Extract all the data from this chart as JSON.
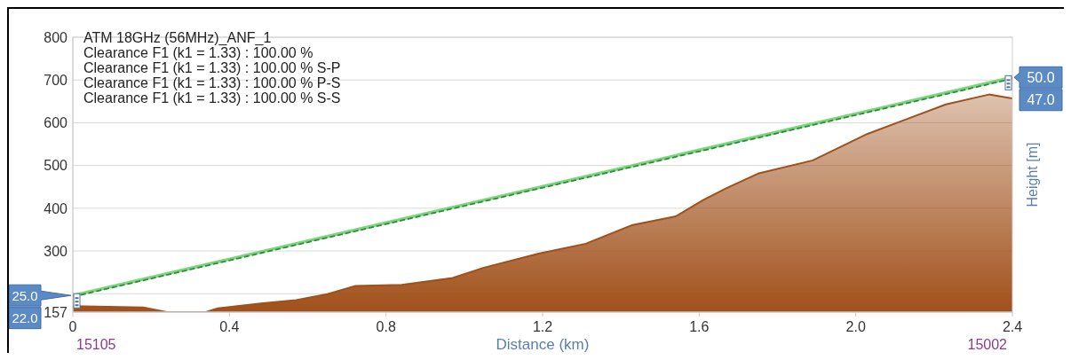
{
  "chart_data": {
    "type": "area",
    "title": "ATM 18GHz (56MHz)_ANF_1",
    "xlabel": "Distance (km)",
    "ylabel": "Height [m]",
    "series": [
      {
        "color": "#a0501a",
        "x": [
          0,
          0.18,
          0.24,
          0.34,
          0.37,
          0.48,
          0.57,
          0.65,
          0.72,
          0.84,
          0.97,
          1.05,
          1.19,
          1.31,
          1.43,
          1.54,
          1.61,
          1.67,
          1.75,
          1.89,
          2.03,
          2.23,
          2.34,
          2.4
        ],
        "values": [
          171,
          168,
          157,
          157,
          166,
          177,
          185,
          199,
          218,
          221,
          237,
          261,
          294,
          317,
          361,
          381,
          419,
          447,
          481,
          512,
          574,
          643,
          666,
          657
        ]
      },
      {
        "type": "line",
        "color": "#7cd67c",
        "x": [
          0,
          2.4
        ],
        "values": [
          196,
          706
        ]
      },
      {
        "type": "line",
        "color": "#2e8b3e",
        "line_style": "dashed",
        "x": [
          0,
          2.4
        ],
        "values": [
          193,
          703
        ]
      }
    ],
    "xlim": [
      0,
      2.4
    ],
    "xticks": [
      0,
      0.4,
      0.8,
      1.2,
      1.6,
      {
        "value": 2,
        "label": "2.0"
      },
      2.4
    ],
    "ylim": [
      157,
      800
    ],
    "yticks": [
      157,
      {
        "value": 200,
        "label": null
      },
      300,
      400,
      500,
      600,
      700,
      800
    ],
    "grid": "y",
    "annotations": [
      "Clearance F1 (k1 = 1.33) : 100.00 %",
      "Clearance F1 (k1 = 1.33) : 100.00 % S-P",
      "Clearance F1 (k1 = 1.33) : 100.00 % P-S",
      "Clearance F1 (k1 = 1.33) : 100.00 % S-S",
      "25.0",
      "22.0",
      "50.0",
      "47.0",
      "15105",
      "15002"
    ]
  }
}
